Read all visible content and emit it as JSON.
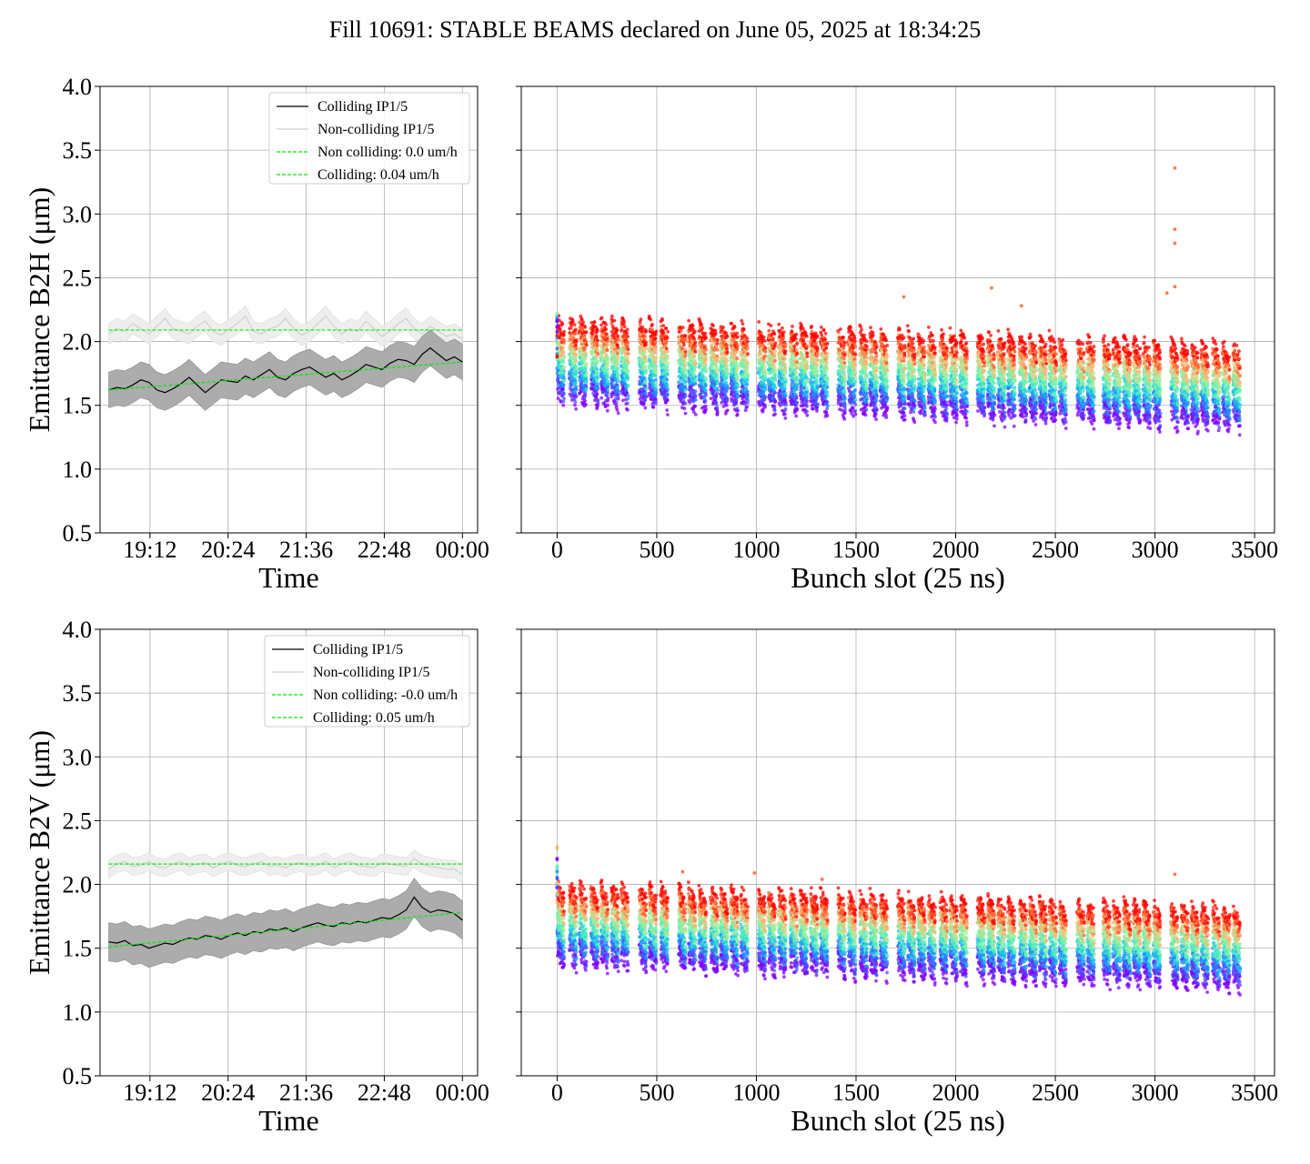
{
  "title": "Fill 10691: STABLE BEAMS declared on June 05, 2025 at 18:34:25",
  "colors": {
    "colliding": "#000000",
    "non_colliding": "#d0d0d0",
    "fit": "#00ee00",
    "band_colliding": "#a8a8a8",
    "band_non_colliding": "#ececec"
  },
  "chart_data": [
    {
      "id": "b2h-time",
      "type": "line",
      "xlabel": "Time",
      "ylabel": "Emittance B2H (μm)",
      "ylim": [
        0.5,
        4.0
      ],
      "yticks": [
        "0.5",
        "1.0",
        "1.5",
        "2.0",
        "2.5",
        "3.0",
        "3.5",
        "4.0"
      ],
      "xlim": [
        "18:26",
        "00:14"
      ],
      "xticks": [
        "19:12",
        "20:24",
        "21:36",
        "22:48",
        "00:00"
      ],
      "grid": true,
      "legend_position": "upper-right",
      "series": [
        {
          "name": "Colliding IP1/5",
          "x_start": "18:34",
          "x_end": "00:00",
          "values": [
            1.62,
            1.64,
            1.63,
            1.66,
            1.7,
            1.68,
            1.62,
            1.6,
            1.63,
            1.67,
            1.72,
            1.66,
            1.6,
            1.65,
            1.7,
            1.69,
            1.68,
            1.73,
            1.7,
            1.74,
            1.78,
            1.72,
            1.7,
            1.75,
            1.78,
            1.8,
            1.76,
            1.72,
            1.75,
            1.7,
            1.73,
            1.77,
            1.82,
            1.8,
            1.78,
            1.83,
            1.86,
            1.85,
            1.82,
            1.9,
            1.95,
            1.9,
            1.85,
            1.88,
            1.84
          ],
          "band": 0.14
        },
        {
          "name": "Non-colliding IP1/5",
          "x_start": "18:34",
          "x_end": "00:00",
          "values": [
            2.06,
            2.1,
            2.08,
            2.14,
            2.1,
            2.06,
            2.12,
            2.18,
            2.1,
            2.08,
            2.06,
            2.12,
            2.16,
            2.08,
            2.05,
            2.1,
            2.14,
            2.2,
            2.08,
            2.06,
            2.1,
            2.12,
            2.18,
            2.1,
            2.05,
            2.08,
            2.14,
            2.2,
            2.12,
            2.06,
            2.1,
            2.08,
            2.16,
            2.1,
            2.04,
            2.08,
            2.14,
            2.18,
            2.1,
            2.06,
            2.12,
            2.08,
            2.04,
            2.06,
            2.02
          ],
          "band": 0.08
        },
        {
          "name": "Non colliding: 0.0 um/h",
          "fit": [
            2.09,
            2.09
          ]
        },
        {
          "name": "Colliding: 0.04 um/h",
          "fit": [
            1.62,
            1.84
          ]
        }
      ]
    },
    {
      "id": "b2h-bunch",
      "type": "scatter",
      "xlabel": "Bunch slot (25 ns)",
      "ylim": [
        0.5,
        4.0
      ],
      "xlim": [
        -180,
        3600
      ],
      "xticks": [
        "0",
        "500",
        "1000",
        "1500",
        "2000",
        "2500",
        "3000",
        "3500"
      ],
      "grid": true,
      "trains_start": [
        0,
        62,
        112,
        170,
        220,
        272,
        322,
        412,
        462,
        520,
        610,
        660,
        712,
        770,
        820,
        872,
        922,
        1010,
        1060,
        1112,
        1170,
        1220,
        1272,
        1322,
        1410,
        1462,
        1520,
        1570,
        1622,
        1710,
        1760,
        1812,
        1862,
        1922,
        1972,
        2022,
        2110,
        2160,
        2212,
        2262,
        2320,
        2370,
        2420,
        2470,
        2520,
        2610,
        2660,
        2740,
        2790,
        2842,
        2892,
        2942,
        2992,
        3080,
        3132,
        3182,
        3232,
        3290,
        3340,
        3392
      ],
      "train_length_slots": 36,
      "level_start": 1.95,
      "level_end": 1.75,
      "spread_low": 0.3,
      "spread_high": 0.2,
      "outliers": [
        [
          3100,
          3.36
        ],
        [
          3100,
          2.88
        ],
        [
          3100,
          2.77
        ],
        [
          3100,
          2.43
        ],
        [
          1740,
          2.35
        ],
        [
          2180,
          2.42
        ],
        [
          2330,
          2.28
        ],
        [
          3060,
          2.38
        ]
      ]
    },
    {
      "id": "b2v-time",
      "type": "line",
      "xlabel": "Time",
      "ylabel": "Emittance B2V (μm)",
      "ylim": [
        0.5,
        4.0
      ],
      "yticks": [
        "0.5",
        "1.0",
        "1.5",
        "2.0",
        "2.5",
        "3.0",
        "3.5",
        "4.0"
      ],
      "xlim": [
        "18:26",
        "00:14"
      ],
      "xticks": [
        "19:12",
        "20:24",
        "21:36",
        "22:48",
        "00:00"
      ],
      "grid": true,
      "legend_position": "upper-right",
      "series": [
        {
          "name": "Colliding IP1/5",
          "x_start": "18:34",
          "x_end": "00:00",
          "values": [
            1.55,
            1.54,
            1.56,
            1.52,
            1.53,
            1.5,
            1.52,
            1.54,
            1.53,
            1.56,
            1.58,
            1.57,
            1.6,
            1.59,
            1.57,
            1.6,
            1.62,
            1.6,
            1.63,
            1.62,
            1.65,
            1.64,
            1.66,
            1.63,
            1.66,
            1.68,
            1.7,
            1.68,
            1.67,
            1.7,
            1.69,
            1.71,
            1.7,
            1.72,
            1.74,
            1.73,
            1.76,
            1.8,
            1.9,
            1.82,
            1.78,
            1.8,
            1.79,
            1.77,
            1.72
          ],
          "band": 0.15
        },
        {
          "name": "Non-colliding IP1/5",
          "x_start": "18:34",
          "x_end": "00:00",
          "values": [
            2.12,
            2.16,
            2.18,
            2.14,
            2.15,
            2.18,
            2.14,
            2.13,
            2.16,
            2.18,
            2.14,
            2.16,
            2.17,
            2.13,
            2.16,
            2.18,
            2.15,
            2.14,
            2.16,
            2.18,
            2.14,
            2.15,
            2.13,
            2.16,
            2.17,
            2.14,
            2.15,
            2.18,
            2.13,
            2.16,
            2.18,
            2.15,
            2.14,
            2.13,
            2.17,
            2.16,
            2.15,
            2.14,
            2.2,
            2.16,
            2.14,
            2.13,
            2.12,
            2.12,
            2.08
          ],
          "band": 0.07
        },
        {
          "name": "Non colliding: -0.0 um/h",
          "fit": [
            2.16,
            2.16
          ]
        },
        {
          "name": "Colliding: 0.05 um/h",
          "fit": [
            1.51,
            1.78
          ]
        }
      ]
    },
    {
      "id": "b2v-bunch",
      "type": "scatter",
      "xlabel": "Bunch slot (25 ns)",
      "ylim": [
        0.5,
        4.0
      ],
      "xlim": [
        -180,
        3600
      ],
      "xticks": [
        "0",
        "500",
        "1000",
        "1500",
        "2000",
        "2500",
        "3000",
        "3500"
      ],
      "grid": true,
      "trains_start": [
        0,
        62,
        112,
        170,
        220,
        272,
        322,
        412,
        462,
        520,
        610,
        660,
        712,
        770,
        820,
        872,
        922,
        1010,
        1060,
        1112,
        1170,
        1220,
        1272,
        1322,
        1410,
        1462,
        1520,
        1570,
        1622,
        1710,
        1760,
        1812,
        1862,
        1922,
        1972,
        2022,
        2110,
        2160,
        2212,
        2262,
        2320,
        2370,
        2420,
        2470,
        2520,
        2610,
        2660,
        2740,
        2790,
        2842,
        2892,
        2942,
        2992,
        3080,
        3132,
        3182,
        3232,
        3290,
        3340,
        3392
      ],
      "train_length_slots": 36,
      "level_start": 1.8,
      "level_end": 1.62,
      "spread_low": 0.3,
      "spread_high": 0.18,
      "outliers": [
        [
          3100,
          2.08
        ],
        [
          630,
          2.1
        ],
        [
          990,
          2.09
        ],
        [
          1330,
          2.04
        ]
      ]
    }
  ]
}
